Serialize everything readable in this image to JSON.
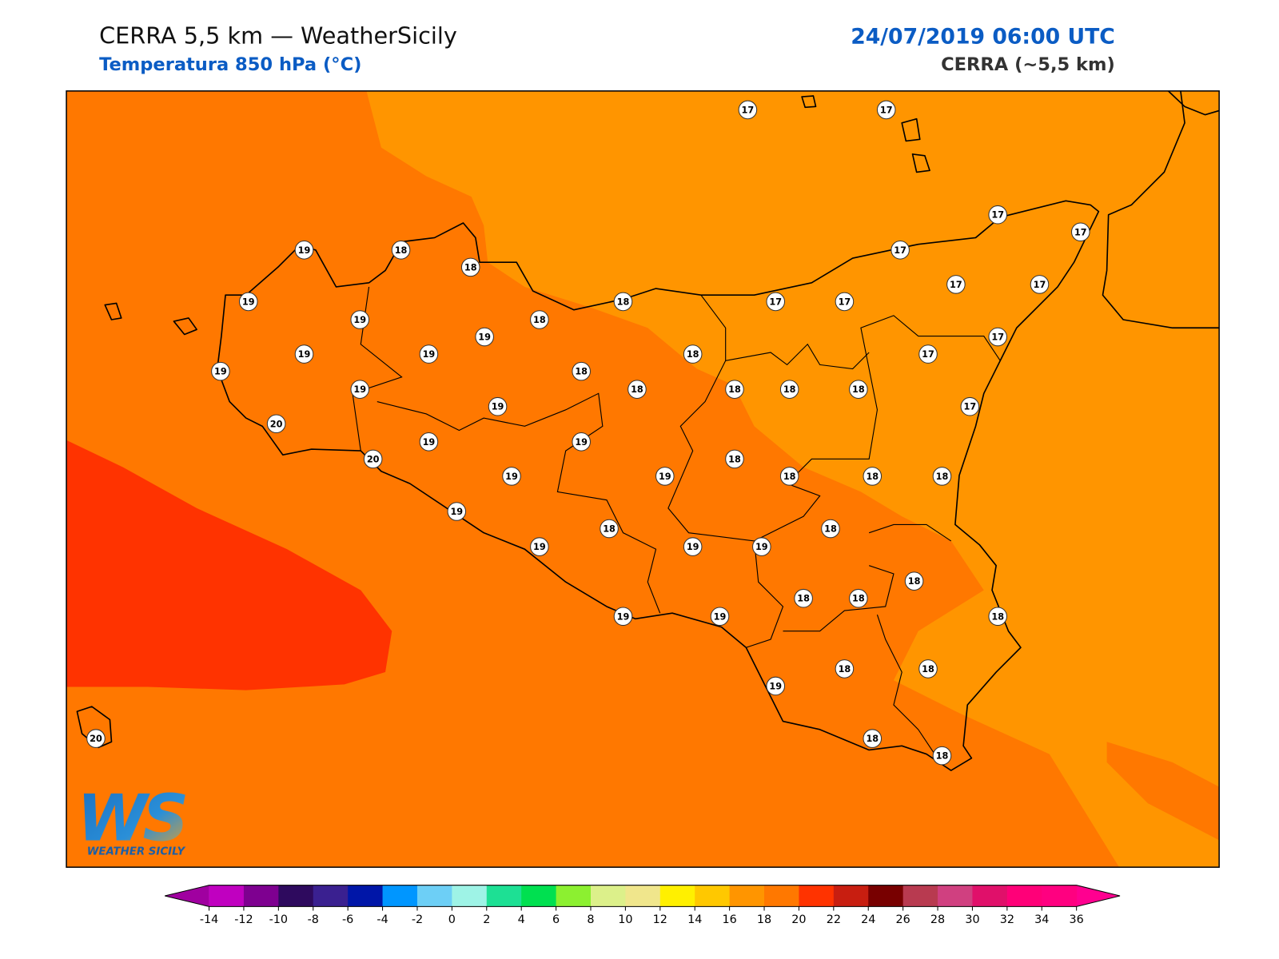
{
  "header": {
    "title": "CERRA 5,5 km — WeatherSicily",
    "subtitle": "Temperatura 850 hPa (°C)",
    "datetime": "24/07/2019 06:00 UTC",
    "model": "CERRA (~5,5 km)"
  },
  "map": {
    "labels": [
      17,
      17,
      19,
      18,
      18,
      17,
      17,
      17,
      19,
      19,
      18,
      18,
      17,
      17,
      17,
      17,
      19,
      19,
      19,
      19,
      19,
      18,
      18,
      18,
      18,
      18,
      18,
      17,
      17,
      17,
      20,
      19,
      19,
      19,
      20,
      19,
      19,
      18,
      18,
      18,
      18,
      19,
      18,
      18,
      19,
      19,
      19,
      18,
      18,
      18,
      19,
      19,
      18,
      18,
      18,
      19,
      18,
      18,
      20
    ]
  },
  "logo": {
    "mark": "WS",
    "text": "WEATHER SICILY"
  },
  "colorbar": {
    "ticks": [
      -14,
      -12,
      -10,
      -8,
      -6,
      -4,
      -2,
      0,
      2,
      4,
      6,
      8,
      10,
      12,
      14,
      16,
      18,
      20,
      22,
      24,
      26,
      28,
      30,
      32,
      34,
      36
    ],
    "colors": [
      "#c000c0",
      "#7e0090",
      "#2e0a5e",
      "#3a2090",
      "#0016a8",
      "#0096ff",
      "#6dcff6",
      "#9ef3e6",
      "#1de094",
      "#00e050",
      "#8cf030",
      "#dcf08a",
      "#f0e68c",
      "#fff000",
      "#ffc800",
      "#ff9500",
      "#ff7800",
      "#ff3300",
      "#c81e10",
      "#780000",
      "#b83a50",
      "#d04080",
      "#e0106a",
      "#ff0078",
      "#ff0080"
    ],
    "under": "#a000a0",
    "over": "#ff0090"
  }
}
